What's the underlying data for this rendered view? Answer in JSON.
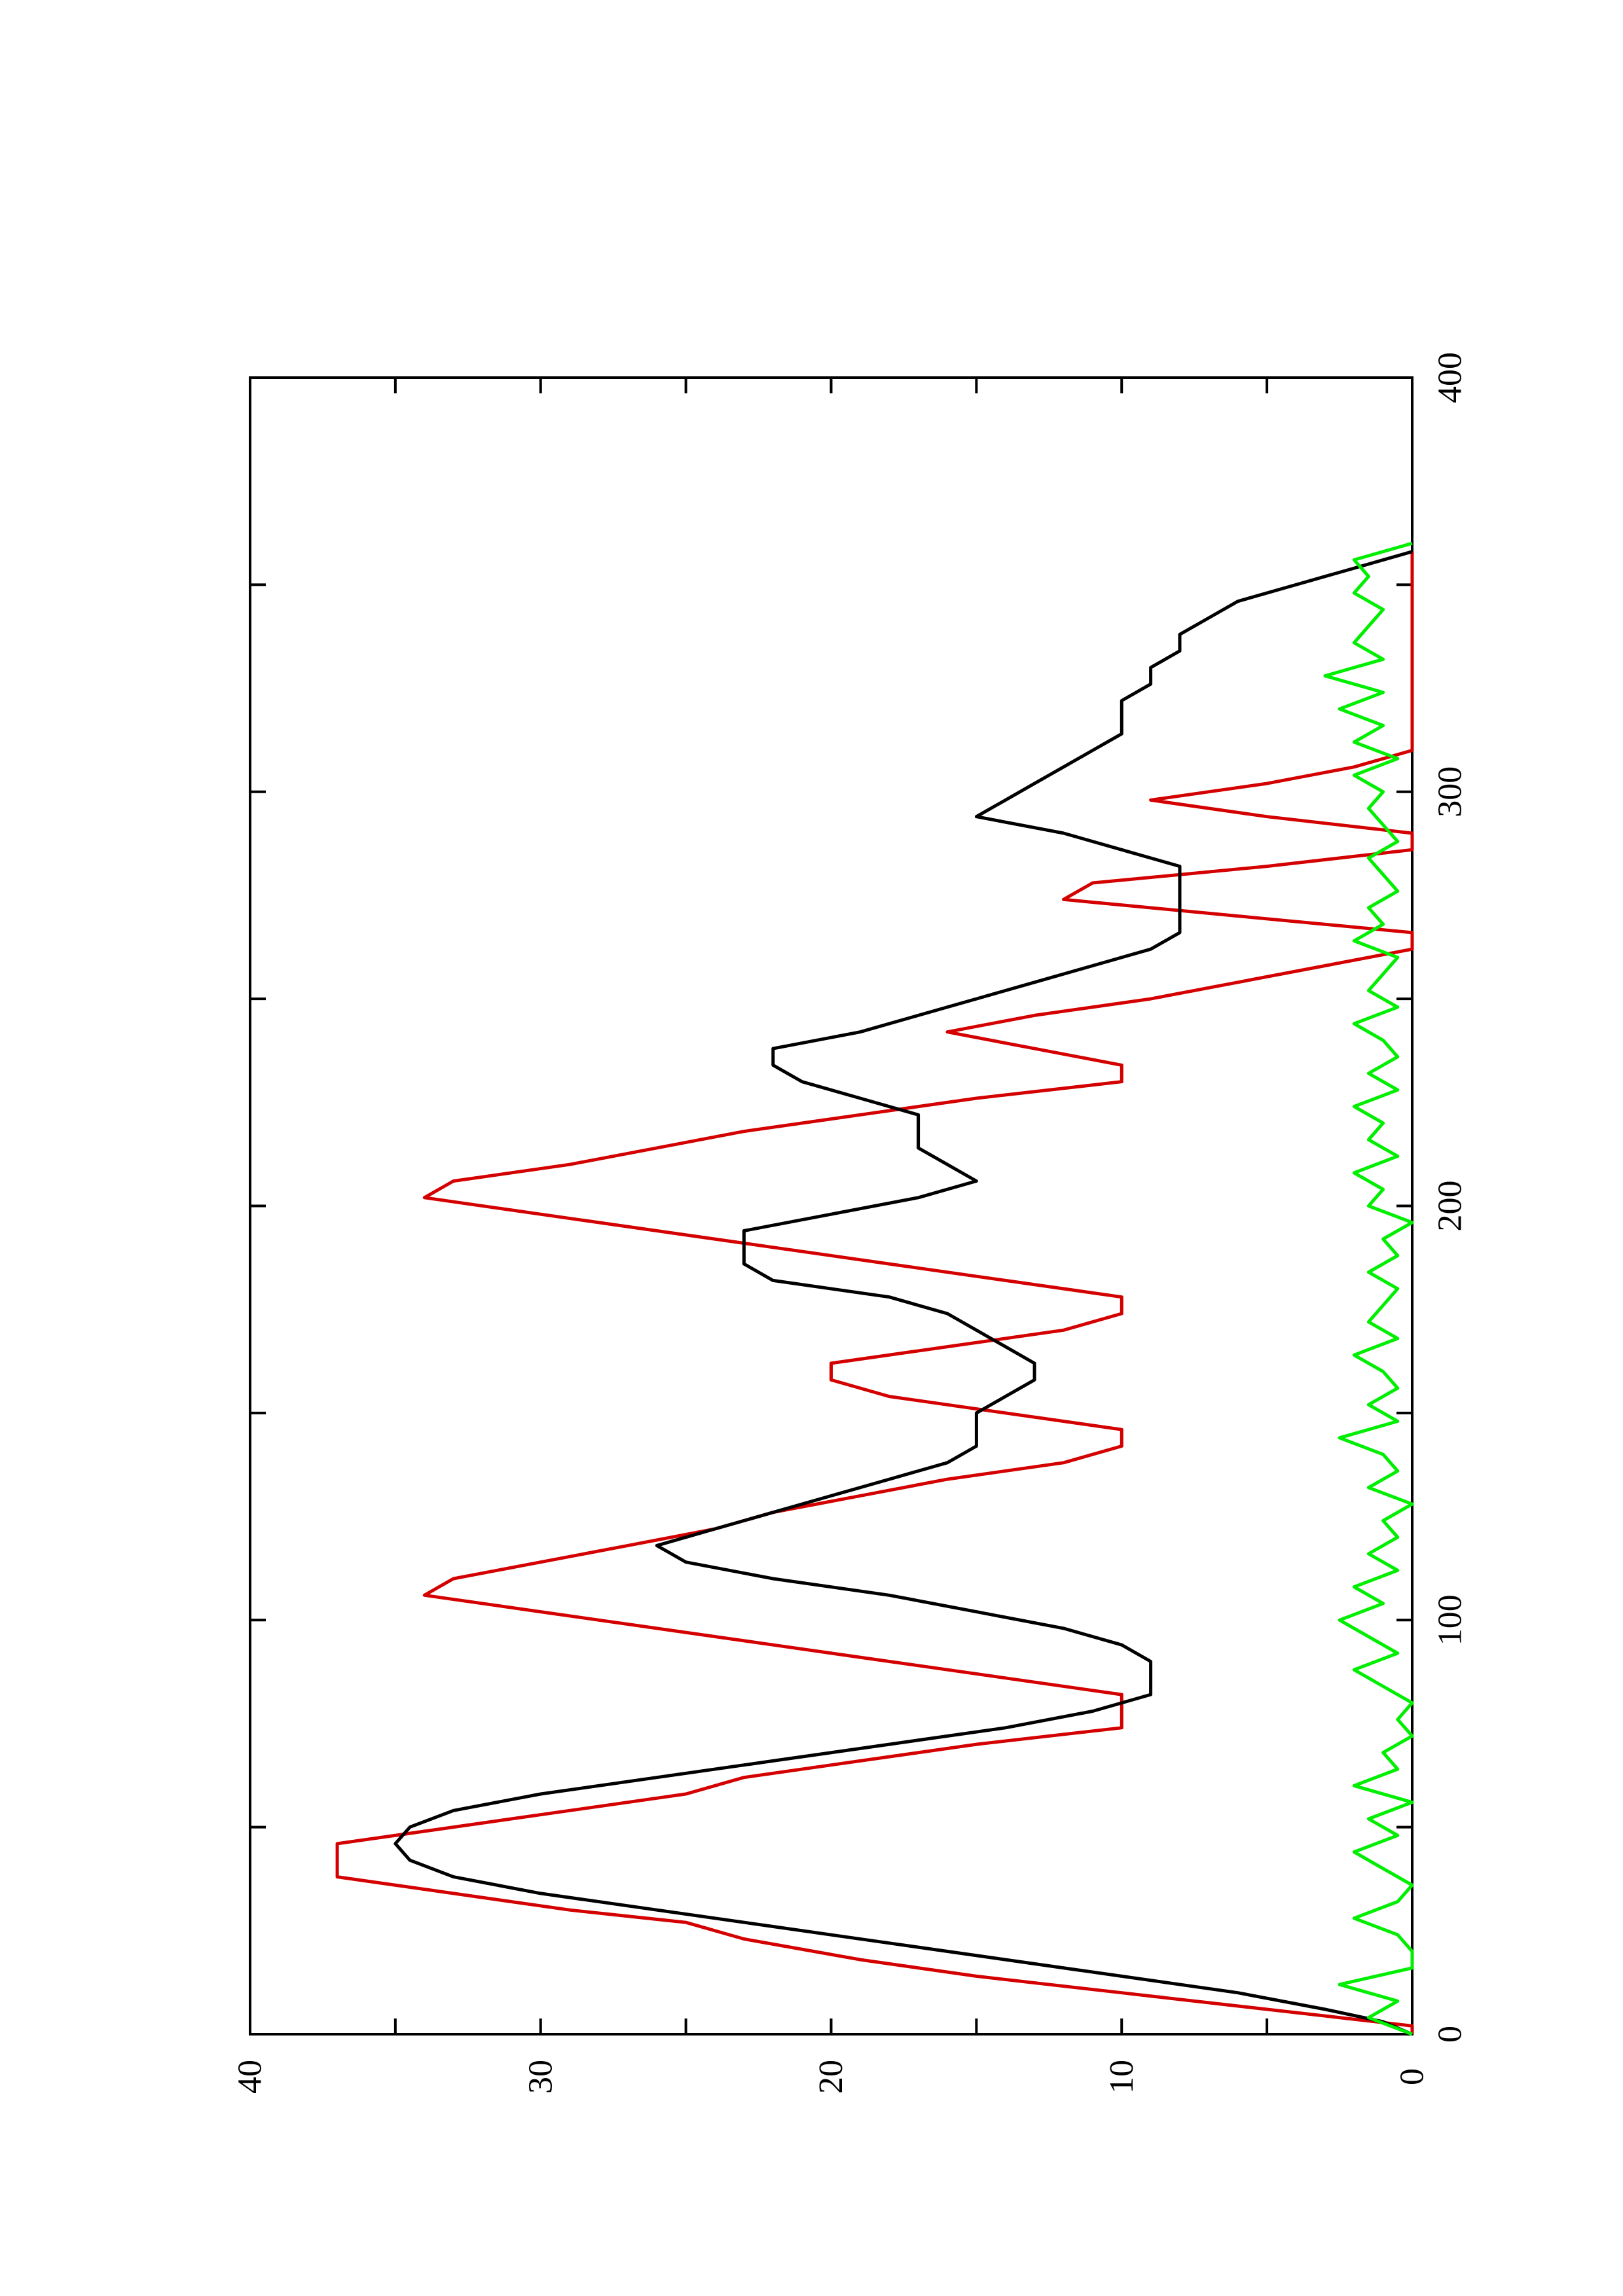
{
  "chart_data": {
    "type": "line",
    "orientation": "rotated-90-ccw",
    "title": "",
    "xlabel": "",
    "ylabel": "",
    "xlim": [
      0,
      400
    ],
    "ylim": [
      0,
      40
    ],
    "x_ticks": [
      0,
      100,
      200,
      300,
      400
    ],
    "y_ticks": [
      0,
      10,
      20,
      30,
      40
    ],
    "x_tick_labels": [
      "0",
      "100",
      "200",
      "300",
      "400"
    ],
    "y_tick_labels": [
      "0",
      "10",
      "20",
      "30",
      "40"
    ],
    "grid": false,
    "legend": "none",
    "series": [
      {
        "color": "#d40000",
        "style": "staircase",
        "x": [
          0,
          2,
          6,
          10,
          14,
          18,
          23,
          27,
          30,
          34,
          38,
          42,
          46,
          50,
          54,
          58,
          62,
          66,
          70,
          74,
          78,
          82,
          86,
          90,
          94,
          98,
          102,
          106,
          110,
          114,
          118,
          122,
          126,
          130,
          134,
          138,
          142,
          146,
          150,
          154,
          158,
          162,
          166,
          170,
          174,
          178,
          182,
          186,
          190,
          194,
          198,
          202,
          206,
          210,
          214,
          218,
          222,
          226,
          230,
          234,
          238,
          242,
          246,
          250,
          254,
          258,
          262,
          266,
          270,
          274,
          278,
          282,
          286,
          290,
          294,
          298,
          302,
          306,
          310,
          314,
          318,
          322,
          326,
          330,
          334,
          338,
          342,
          346,
          350,
          354,
          358
        ],
        "y": [
          0,
          0,
          5,
          10,
          15,
          19,
          23,
          25,
          29,
          33,
          37,
          37,
          37,
          33,
          29,
          25,
          23,
          19,
          15,
          10,
          10,
          10,
          14,
          18,
          22,
          26,
          30,
          34,
          33,
          30,
          27,
          24,
          22,
          19,
          16,
          12,
          10,
          10,
          14,
          18,
          20,
          20,
          16,
          12,
          10,
          10,
          14,
          18,
          22,
          26,
          30,
          34,
          33,
          29,
          26,
          23,
          19,
          15,
          10,
          10,
          13,
          16,
          13,
          9,
          6,
          3,
          0,
          0,
          6,
          12,
          11,
          5,
          0,
          0,
          5,
          9,
          5,
          2,
          0,
          0,
          0,
          0,
          0,
          0,
          0,
          0,
          0,
          0,
          0,
          0,
          0
        ]
      },
      {
        "color": "#000000",
        "style": "line",
        "x": [
          0,
          3,
          6,
          10,
          14,
          18,
          22,
          26,
          30,
          34,
          38,
          42,
          46,
          50,
          54,
          58,
          62,
          66,
          70,
          74,
          78,
          82,
          86,
          90,
          94,
          98,
          102,
          106,
          110,
          114,
          118,
          122,
          126,
          130,
          134,
          138,
          142,
          146,
          150,
          154,
          158,
          162,
          166,
          170,
          174,
          178,
          182,
          186,
          190,
          194,
          198,
          202,
          206,
          210,
          214,
          218,
          222,
          226,
          230,
          234,
          238,
          242,
          246,
          250,
          254,
          258,
          262,
          266,
          270,
          274,
          278,
          282,
          286,
          290,
          294,
          298,
          302,
          306,
          310,
          314,
          318,
          322,
          326,
          330,
          334,
          338,
          342,
          346,
          350,
          354,
          358
        ],
        "y": [
          0,
          1,
          3,
          6,
          10,
          14,
          18,
          22,
          26,
          30,
          33,
          34.5,
          35,
          34.5,
          33,
          30,
          26,
          22,
          18,
          14,
          11,
          9,
          9,
          9,
          10,
          12,
          15,
          18,
          22,
          25,
          26,
          24,
          22,
          20,
          18,
          16,
          15,
          15,
          15,
          14,
          13,
          13,
          14,
          15,
          16,
          18,
          22,
          23,
          23,
          23,
          20,
          17,
          15,
          16,
          17,
          17,
          17,
          19,
          21,
          22,
          22,
          19,
          17,
          15,
          13,
          11,
          9,
          8,
          8,
          8,
          8,
          8,
          10,
          12,
          15,
          14,
          13,
          12,
          11,
          10,
          10,
          10,
          9,
          9,
          8,
          8,
          7,
          6,
          4,
          2,
          0
        ]
      },
      {
        "color": "#00ee00",
        "style": "line",
        "x": [
          0,
          4,
          8,
          12,
          16,
          20,
          24,
          28,
          32,
          36,
          40,
          44,
          48,
          52,
          56,
          60,
          64,
          68,
          72,
          76,
          80,
          84,
          88,
          92,
          96,
          100,
          104,
          108,
          112,
          116,
          120,
          124,
          128,
          132,
          136,
          140,
          144,
          148,
          152,
          156,
          160,
          164,
          168,
          172,
          176,
          180,
          184,
          188,
          192,
          196,
          200,
          204,
          208,
          212,
          216,
          220,
          224,
          228,
          232,
          236,
          240,
          244,
          248,
          252,
          256,
          260,
          264,
          268,
          272,
          276,
          280,
          284,
          288,
          292,
          296,
          300,
          304,
          308,
          312,
          316,
          320,
          324,
          328,
          332,
          336,
          340,
          344,
          348,
          352,
          356,
          360
        ],
        "y": [
          0,
          1.5,
          0.5,
          2.5,
          0,
          0,
          0.5,
          2,
          0.5,
          0,
          1,
          2,
          0.5,
          1.5,
          0,
          2,
          0.5,
          1,
          0,
          0.5,
          0,
          1,
          2,
          0.5,
          1.5,
          2.5,
          1,
          2,
          0.5,
          1.5,
          0.5,
          1,
          0,
          1.5,
          0.5,
          1,
          2.5,
          0.5,
          1.5,
          0.5,
          1,
          2,
          0.5,
          1.5,
          1,
          0.5,
          1.5,
          0.5,
          1,
          0,
          1.5,
          1,
          2,
          0.5,
          1.5,
          1,
          2,
          0.5,
          1.5,
          0.5,
          1,
          2,
          0.5,
          1.5,
          1,
          0.5,
          2,
          1,
          1.5,
          0.5,
          1,
          1.5,
          0.5,
          1,
          1.5,
          1,
          2,
          0.5,
          2,
          1,
          2.5,
          1,
          3,
          1,
          2,
          1.5,
          1,
          2,
          1.5,
          2,
          0
        ]
      }
    ]
  }
}
